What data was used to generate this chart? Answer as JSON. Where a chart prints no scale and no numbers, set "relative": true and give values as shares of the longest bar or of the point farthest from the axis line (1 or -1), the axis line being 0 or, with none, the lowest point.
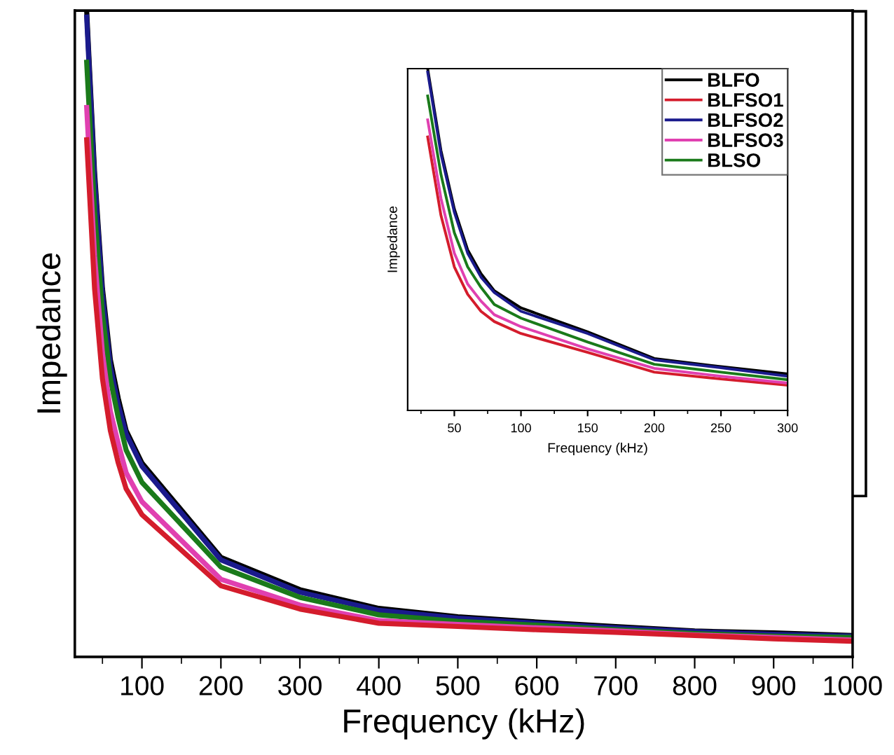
{
  "chart_data": [
    {
      "type": "line",
      "relative": true,
      "xlabel": "Frequency (kHz)",
      "ylabel": "Impedance",
      "legend": false,
      "grid": false,
      "marker": "none",
      "line_style": "solid",
      "xlim": [
        15,
        1000
      ],
      "xticks": [
        {
          "value": 50,
          "label": null
        },
        100,
        {
          "value": 150,
          "label": null
        },
        200,
        {
          "value": 250,
          "label": null
        },
        300,
        {
          "value": 350,
          "label": null
        },
        400,
        {
          "value": 450,
          "label": null
        },
        500,
        {
          "value": 550,
          "label": null
        },
        600,
        {
          "value": 650,
          "label": null
        },
        700,
        {
          "value": 750,
          "label": null
        },
        800,
        {
          "value": 850,
          "label": null
        },
        900,
        {
          "value": 950,
          "label": null
        },
        1000
      ],
      "x": [
        30,
        40,
        50,
        60,
        70,
        80,
        100,
        200,
        300,
        400,
        500,
        600,
        700,
        800,
        900,
        1000
      ],
      "series": [
        {
          "color": "#000000",
          "values": [
            1.0,
            0.75,
            0.57,
            0.46,
            0.4,
            0.35,
            0.3,
            0.154,
            0.104,
            0.075,
            0.062,
            0.054,
            0.047,
            0.04,
            0.037,
            0.033
          ]
        },
        {
          "color": "#1a1a8c",
          "values": [
            0.99,
            0.74,
            0.56,
            0.45,
            0.39,
            0.345,
            0.295,
            0.15,
            0.1,
            0.072,
            0.06,
            0.052,
            0.045,
            0.039,
            0.035,
            0.032
          ]
        },
        {
          "color": "#1a7a1a",
          "values": [
            0.92,
            0.69,
            0.53,
            0.43,
            0.37,
            0.32,
            0.27,
            0.139,
            0.092,
            0.065,
            0.055,
            0.049,
            0.042,
            0.036,
            0.032,
            0.03
          ]
        },
        {
          "color": "#e040b0",
          "values": [
            0.85,
            0.62,
            0.47,
            0.38,
            0.33,
            0.285,
            0.24,
            0.12,
            0.08,
            0.056,
            0.05,
            0.045,
            0.04,
            0.034,
            0.03,
            0.026
          ]
        },
        {
          "color": "#d41c2c",
          "values": [
            0.8,
            0.57,
            0.43,
            0.35,
            0.3,
            0.26,
            0.22,
            0.11,
            0.074,
            0.052,
            0.047,
            0.042,
            0.038,
            0.033,
            0.028,
            0.024
          ]
        }
      ]
    },
    {
      "type": "line",
      "relative": true,
      "xlabel": "Frequency (kHz)",
      "ylabel": "Impedance",
      "legend": "top right",
      "grid": false,
      "marker": "none",
      "line_style": "solid",
      "xlim": [
        15,
        300
      ],
      "xticks": [
        {
          "value": 25,
          "label": null
        },
        50,
        {
          "value": 75,
          "label": null
        },
        100,
        {
          "value": 125,
          "label": null
        },
        150,
        {
          "value": 175,
          "label": null
        },
        200,
        {
          "value": 225,
          "label": null
        },
        250,
        {
          "value": 275,
          "label": null
        },
        300
      ],
      "x": [
        30,
        40,
        50,
        60,
        70,
        80,
        100,
        150,
        200,
        250,
        300
      ],
      "series": [
        {
          "name": "BLFO",
          "color": "#000000",
          "values": [
            1.0,
            0.76,
            0.59,
            0.47,
            0.4,
            0.35,
            0.3,
            0.23,
            0.152,
            0.128,
            0.107
          ]
        },
        {
          "name": "BLFSO1",
          "color": "#d41c2c",
          "values": [
            0.8,
            0.57,
            0.42,
            0.34,
            0.29,
            0.26,
            0.225,
            0.17,
            0.112,
            0.092,
            0.074
          ]
        },
        {
          "name": "BLFSO2",
          "color": "#1a1a8c",
          "values": [
            0.99,
            0.75,
            0.58,
            0.46,
            0.39,
            0.345,
            0.29,
            0.225,
            0.148,
            0.125,
            0.1
          ]
        },
        {
          "name": "BLFSO3",
          "color": "#e040b0",
          "values": [
            0.85,
            0.62,
            0.46,
            0.37,
            0.32,
            0.28,
            0.245,
            0.18,
            0.123,
            0.1,
            0.08
          ]
        },
        {
          "name": "BLSO",
          "color": "#1a7a1a",
          "values": [
            0.92,
            0.69,
            0.52,
            0.42,
            0.36,
            0.31,
            0.27,
            0.2,
            0.135,
            0.112,
            0.09
          ]
        }
      ]
    }
  ]
}
